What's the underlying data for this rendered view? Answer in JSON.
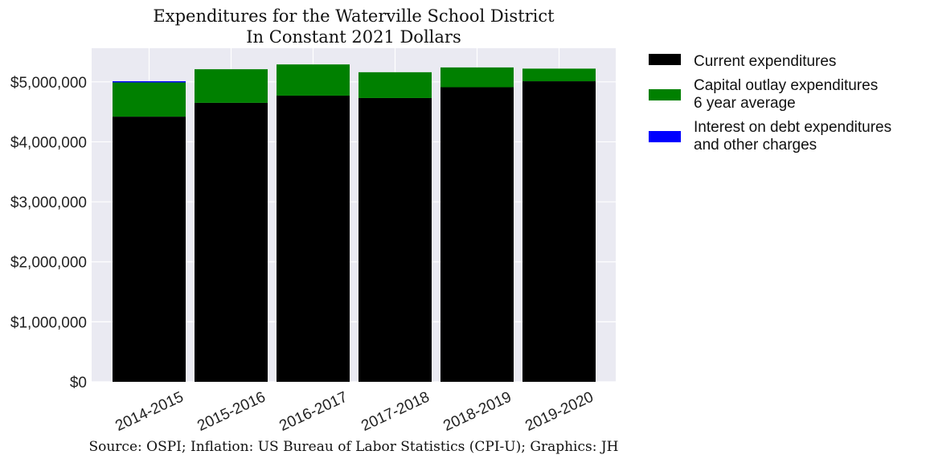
{
  "chart_data": {
    "type": "bar",
    "stacked": true,
    "title": "Expenditures for the Waterville School District",
    "subtitle": "In Constant 2021 Dollars",
    "categories": [
      "2014-2015",
      "2015-2016",
      "2016-2017",
      "2017-2018",
      "2018-2019",
      "2019-2020"
    ],
    "series": [
      {
        "name": "Current expenditures",
        "color": "#000000",
        "values": [
          4420000,
          4650000,
          4770000,
          4730000,
          4910000,
          5010000
        ]
      },
      {
        "name": "Capital outlay expenditures\n6 year average",
        "color": "#008000",
        "values": [
          570000,
          560000,
          520000,
          430000,
          330000,
          210000
        ]
      },
      {
        "name": "Interest on debt expenditures\nand other charges",
        "color": "#0000ff",
        "values": [
          20000,
          0,
          0,
          0,
          0,
          0
        ]
      }
    ],
    "yticks": [
      0,
      1000000,
      2000000,
      3000000,
      4000000,
      5000000
    ],
    "ytick_labels": [
      "$0",
      "$1,000,000",
      "$2,000,000",
      "$3,000,000",
      "$4,000,000",
      "$5,000,000"
    ],
    "ylim": [
      0,
      5560000
    ],
    "grid": true,
    "legend_position": "right, outside plot"
  },
  "footer": {
    "source": "Source: OSPI; Inflation: US Bureau of Labor Statistics (CPI-U); Graphics: JH"
  }
}
